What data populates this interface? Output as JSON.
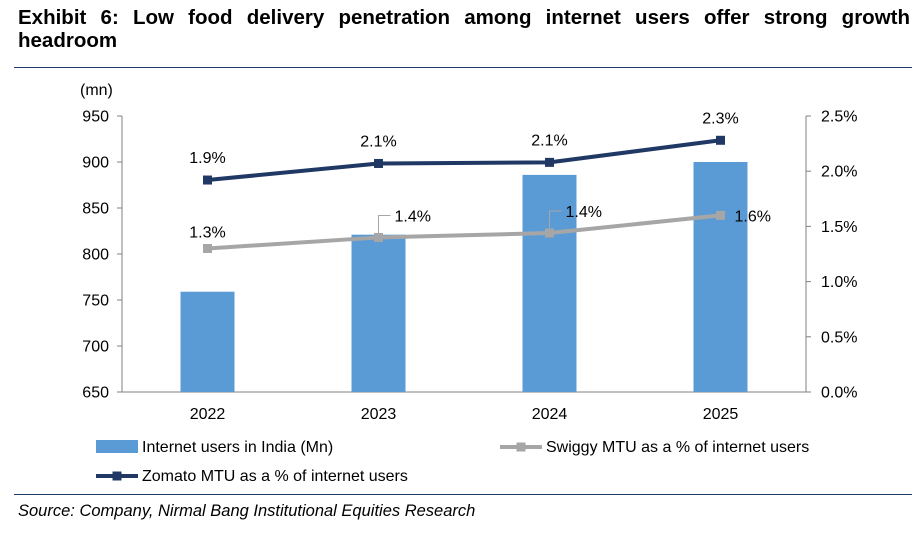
{
  "title": "Exhibit 6: Low food delivery penetration among internet users offer strong growth headroom",
  "source": "Source: Company, Nirmal Bang Institutional Equities Research",
  "chart_data": {
    "type": "bar",
    "categories": [
      "2022",
      "2023",
      "2024",
      "2025"
    ],
    "y_left": {
      "unit_label": "(mn)",
      "min": 650,
      "max": 950,
      "step": 50
    },
    "y_right": {
      "min": 0,
      "max": 2.5,
      "step": 0.5,
      "suffix": "%"
    },
    "series": [
      {
        "name": "Internet users in India (Mn)",
        "kind": "bar",
        "axis": "left",
        "color": "#5b9bd5",
        "values": [
          759,
          821,
          886,
          900
        ]
      },
      {
        "name": "Swiggy MTU as a % of internet users",
        "kind": "line",
        "axis": "right",
        "color": "#a6a6a6",
        "values": [
          1.3,
          1.4,
          1.44,
          1.6
        ],
        "labels": [
          "1.3%",
          "1.4%",
          "1.4%",
          "1.6%"
        ]
      },
      {
        "name": "Zomato MTU as a % of internet users",
        "kind": "line",
        "axis": "right",
        "color": "#203864",
        "values": [
          1.92,
          2.07,
          2.08,
          2.28
        ],
        "labels": [
          "1.9%",
          "2.1%",
          "2.1%",
          "2.3%"
        ]
      }
    ],
    "legend": [
      "Internet users in India (Mn)",
      "Swiggy MTU as a % of internet users",
      "Zomato MTU as a % of internet users"
    ],
    "legend_position": "bottom",
    "grid": false
  }
}
